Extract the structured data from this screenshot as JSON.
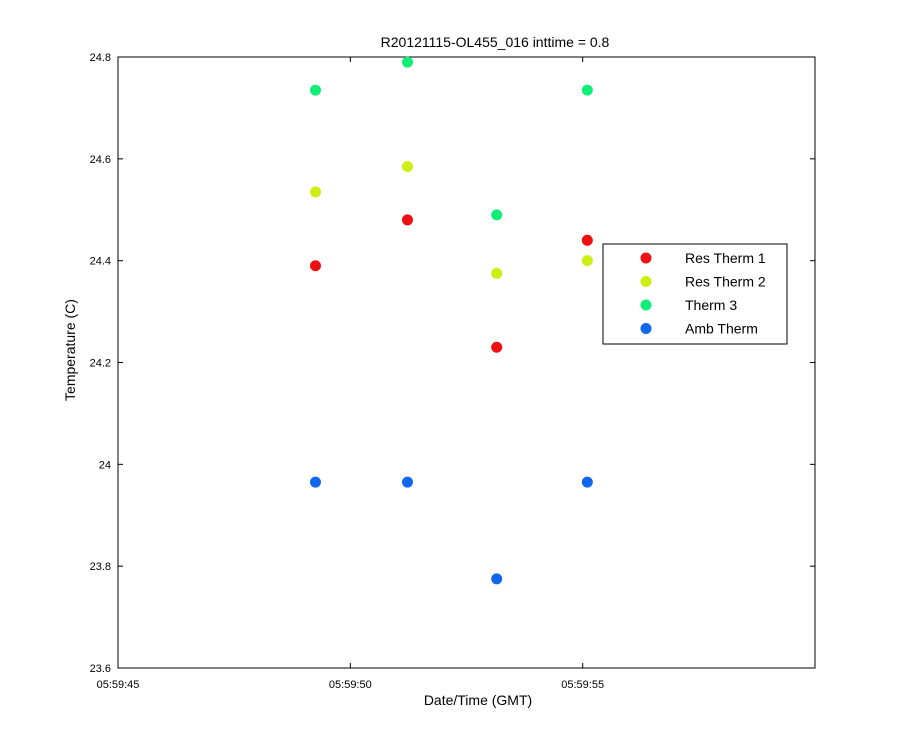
{
  "chart_data": {
    "type": "scatter",
    "title": "R20121115-OL455_016 inttime = 0.8",
    "xlabel": "Date/Time (GMT)",
    "ylabel": "Temperature (C)",
    "xlim": [
      "05:59:45",
      "06:00:00"
    ],
    "ylim": [
      23.6,
      24.8
    ],
    "x_ticks": [
      "05:59:45",
      "05:59:50",
      "05:59:55"
    ],
    "y_ticks": [
      "23.6",
      "23.8",
      "24",
      "24.2",
      "24.4",
      "24.6",
      "24.8"
    ],
    "grid": false,
    "legend_position": "right",
    "series": [
      {
        "name": "Res Therm 1",
        "color": "#ee1111",
        "x": [
          "05:59:49.25",
          "05:59:51.23",
          "05:59:53.15",
          "05:59:55.10"
        ],
        "y": [
          24.39,
          24.48,
          24.23,
          24.44
        ]
      },
      {
        "name": "Res Therm 2",
        "color": "#ccee11",
        "x": [
          "05:59:49.25",
          "05:59:51.23",
          "05:59:53.15",
          "05:59:55.10"
        ],
        "y": [
          24.535,
          24.585,
          24.375,
          24.4
        ]
      },
      {
        "name": "Therm 3",
        "color": "#11ee77",
        "x": [
          "05:59:49.25",
          "05:59:51.23",
          "05:59:53.15",
          "05:59:55.10"
        ],
        "y": [
          24.735,
          24.79,
          24.49,
          24.735
        ]
      },
      {
        "name": "Amb Therm",
        "color": "#1166ee",
        "x": [
          "05:59:49.25",
          "05:59:51.23",
          "05:59:53.15",
          "05:59:55.10"
        ],
        "y": [
          23.965,
          23.965,
          23.775,
          23.965
        ]
      }
    ]
  }
}
